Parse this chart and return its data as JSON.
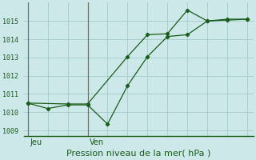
{
  "background_color": "#cce8e8",
  "grid_color": "#aacece",
  "line_color": "#1a5c1a",
  "vline_color": "#6a7a6a",
  "title": "Pression niveau de la mer( hPa )",
  "xlabel_jeu": "Jeu",
  "xlabel_ven": "Ven",
  "ylim": [
    1008.7,
    1016.0
  ],
  "yticks": [
    1009,
    1010,
    1011,
    1012,
    1013,
    1014,
    1015
  ],
  "ytick_fontsize": 6.0,
  "xlabel_fontsize": 7.0,
  "title_fontsize": 8.0,
  "line1_x": [
    0,
    1,
    2,
    3,
    4,
    5,
    6,
    7,
    8,
    9,
    10,
    11
  ],
  "line1_y": [
    1010.5,
    1010.2,
    1010.4,
    1010.4,
    1009.35,
    1011.45,
    1013.05,
    1014.15,
    1014.25,
    1015.0,
    1015.05,
    1015.1
  ],
  "line2_x": [
    0,
    2,
    3,
    5,
    6,
    7,
    8,
    9,
    10,
    11
  ],
  "line2_y": [
    1010.5,
    1010.45,
    1010.45,
    1013.05,
    1014.25,
    1014.3,
    1015.6,
    1015.0,
    1015.1,
    1015.1
  ],
  "jeu_vline_x": 0,
  "ven_vline_x": 3,
  "total_points": 12,
  "xlim": [
    -0.2,
    11.3
  ]
}
